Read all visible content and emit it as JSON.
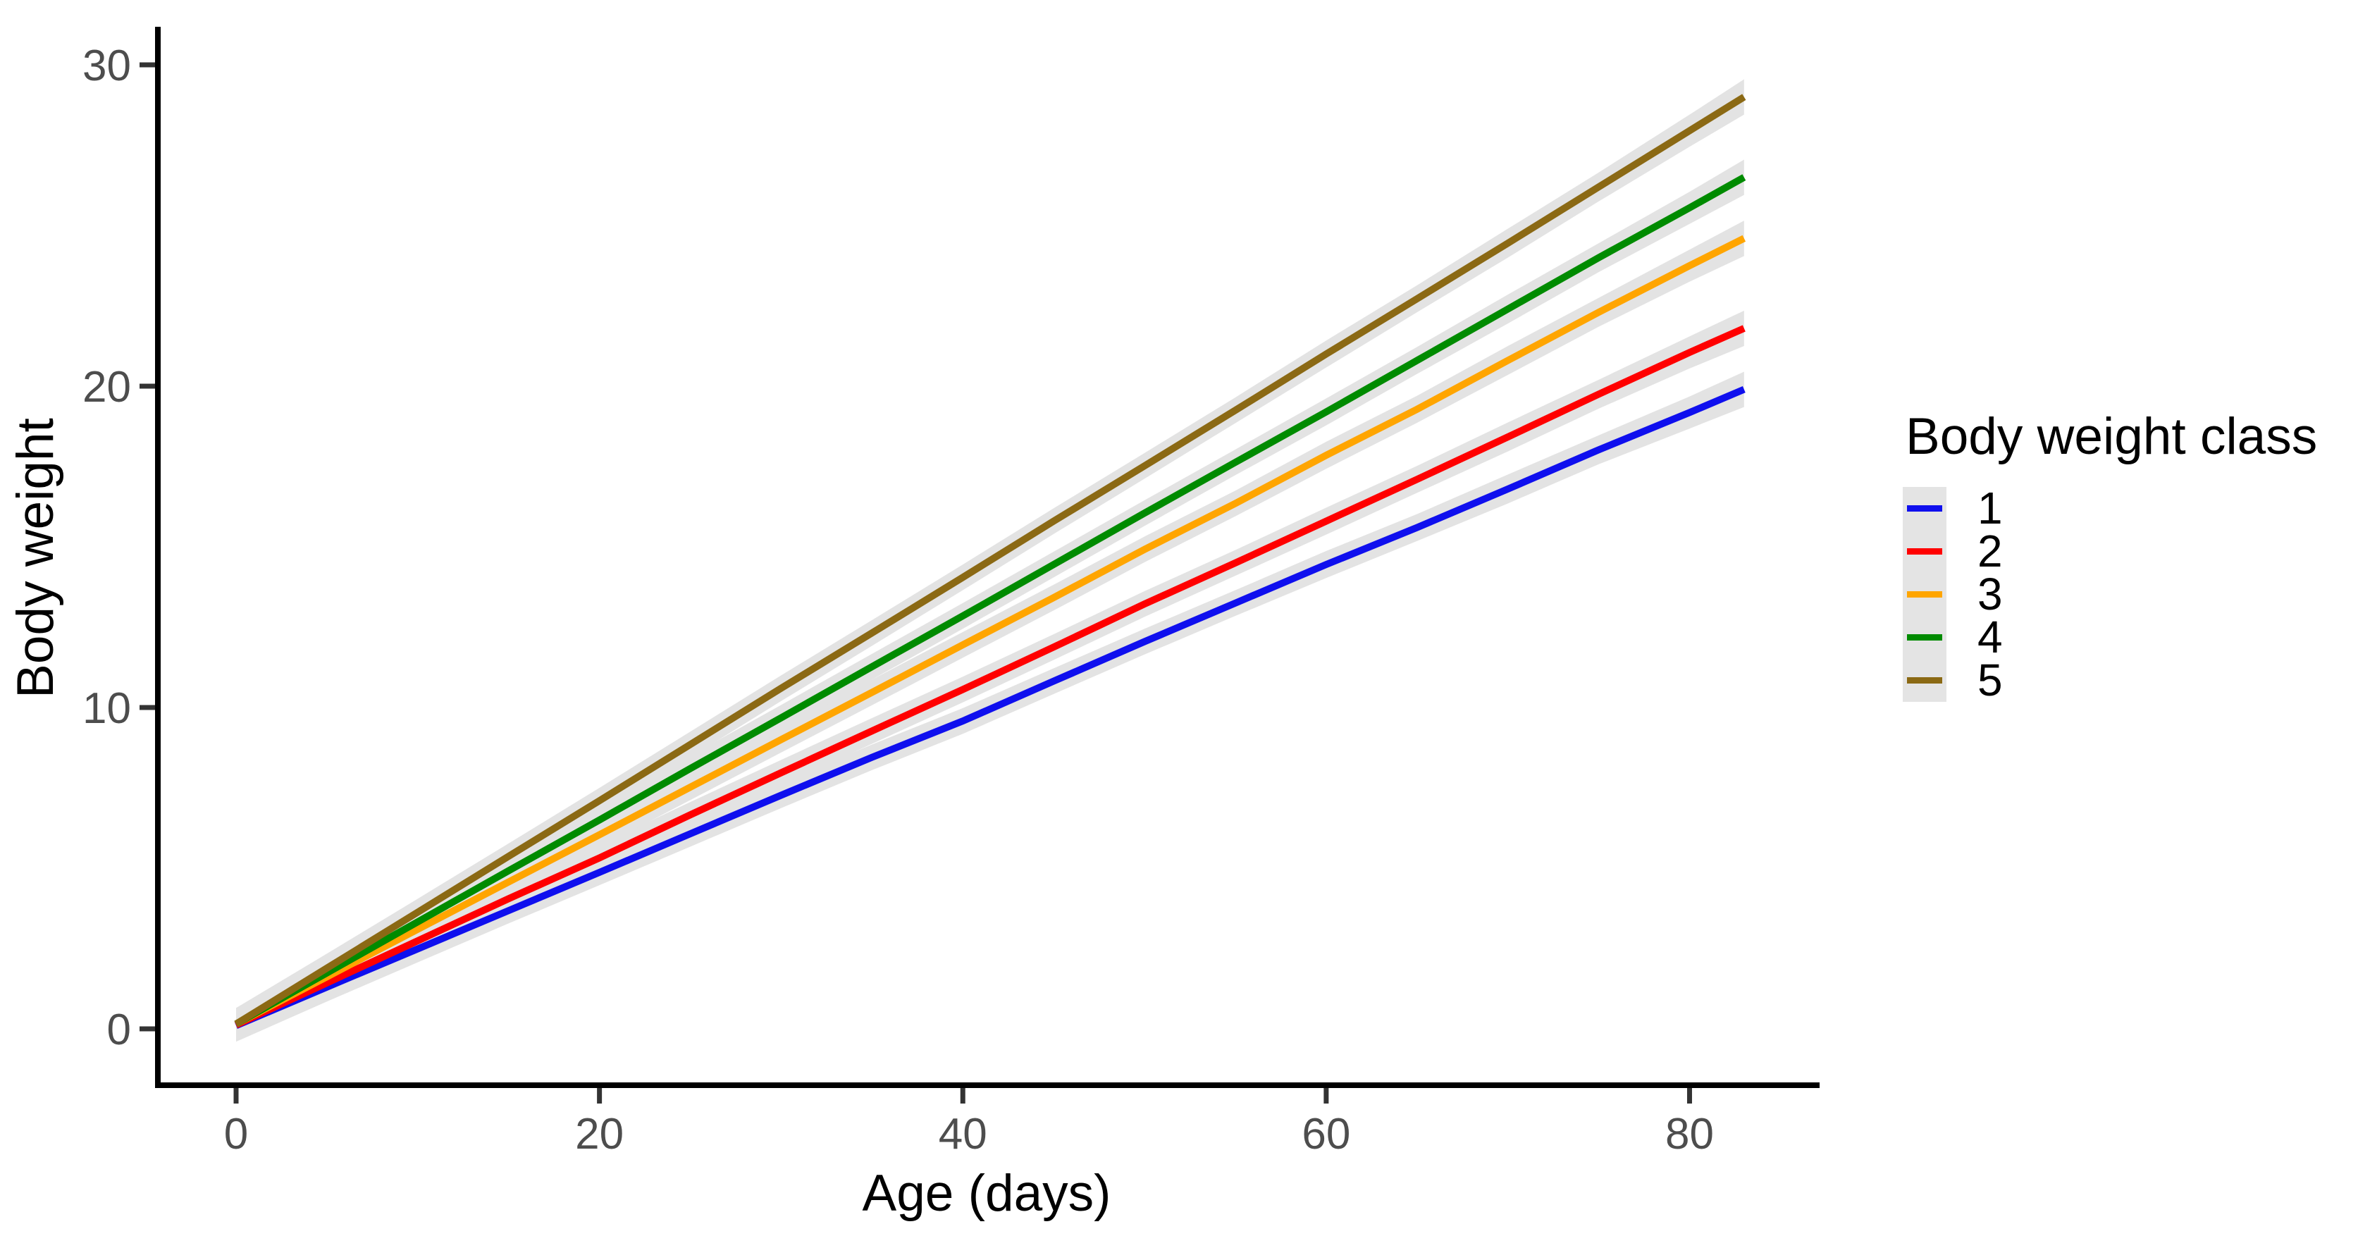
{
  "chart_data": {
    "type": "line",
    "title": "",
    "xlabel": "Age (days)",
    "ylabel": "Body weight",
    "x_ticks": [
      0,
      20,
      40,
      60,
      80
    ],
    "y_ticks": [
      0,
      10,
      20,
      30
    ],
    "xlim": [
      -4.2,
      87.2
    ],
    "ylim": [
      -1.9,
      31.0
    ],
    "grid": "off",
    "legend": {
      "title": "Body weight class",
      "position": "right"
    },
    "ribbon_color": "#E3E3E3",
    "axis_line_color": "#000000",
    "tick_color": "#333333",
    "tick_label_color": "#4D4D4D",
    "x": [
      0,
      5,
      10,
      15,
      20,
      25,
      30,
      35,
      40,
      45,
      50,
      55,
      60,
      65,
      70,
      75,
      80,
      83
    ],
    "band_halfwidth": [
      0.5,
      0.45,
      0.42,
      0.4,
      0.4,
      0.4,
      0.4,
      0.4,
      0.4,
      0.4,
      0.4,
      0.4,
      0.42,
      0.42,
      0.45,
      0.45,
      0.5,
      0.55
    ],
    "series": [
      {
        "name": "1",
        "color": "#0F0FEE",
        "values": [
          0.1,
          1.3,
          2.49,
          3.68,
          4.87,
          6.07,
          7.27,
          8.45,
          9.58,
          10.82,
          12.05,
          13.25,
          14.45,
          15.6,
          16.8,
          18.02,
          19.18,
          19.9
        ]
      },
      {
        "name": "2",
        "color": "#FF0000",
        "values": [
          0.12,
          1.43,
          2.74,
          4.05,
          5.32,
          6.66,
          7.97,
          9.27,
          10.56,
          11.88,
          13.22,
          14.5,
          15.8,
          17.1,
          18.42,
          19.75,
          21.05,
          21.8
        ]
      },
      {
        "name": "3",
        "color": "#FFA500",
        "values": [
          0.15,
          1.62,
          3.1,
          4.57,
          6.04,
          7.52,
          9.0,
          10.47,
          11.95,
          13.42,
          14.92,
          16.35,
          17.85,
          19.28,
          20.8,
          22.3,
          23.75,
          24.6
        ]
      },
      {
        "name": "4",
        "color": "#008B00",
        "values": [
          0.15,
          1.74,
          3.33,
          4.92,
          6.5,
          8.1,
          9.68,
          11.27,
          12.85,
          14.45,
          16.05,
          17.63,
          19.2,
          20.8,
          22.4,
          24.0,
          25.55,
          26.5
        ]
      },
      {
        "name": "5",
        "color": "#8B6914",
        "values": [
          0.15,
          1.89,
          3.63,
          5.37,
          7.1,
          8.85,
          10.6,
          12.32,
          14.05,
          15.8,
          17.52,
          19.25,
          21.0,
          22.72,
          24.45,
          26.2,
          27.95,
          29.0
        ]
      }
    ]
  }
}
